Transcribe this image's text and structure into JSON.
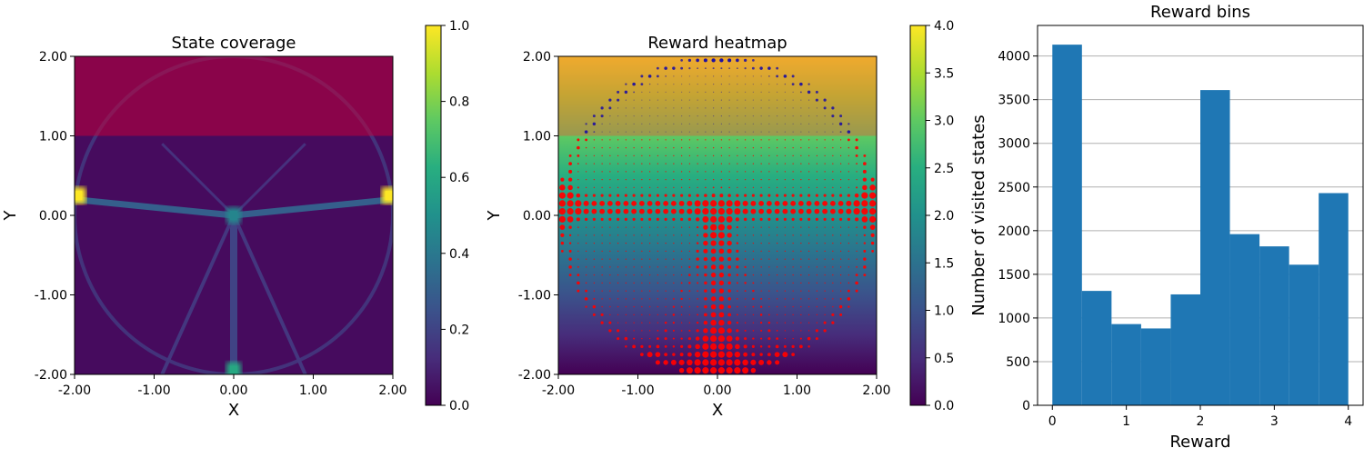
{
  "chart_data": [
    {
      "type": "heatmap",
      "title": "State coverage",
      "xlabel": "X",
      "ylabel": "Y",
      "xlim": [
        -2,
        2
      ],
      "ylim": [
        -2,
        2
      ],
      "xticks": [
        "-2.00",
        "-1.00",
        "0.00",
        "1.00",
        "2.00"
      ],
      "yticks": [
        "-2.00",
        "-1.00",
        "0.00",
        "1.00",
        "2.00"
      ],
      "colorbar": {
        "min": 0,
        "max": 1,
        "ticks": [
          "0.0",
          "0.2",
          "0.4",
          "0.6",
          "0.8",
          "1.0"
        ],
        "colormap": "viridis"
      },
      "overlay_region": {
        "y_from": 1,
        "y_to": 2,
        "color": "#c2003a"
      },
      "hotspots": [
        {
          "x": -1.95,
          "y": 0.25,
          "value": 1.0
        },
        {
          "x": 1.95,
          "y": 0.25,
          "value": 1.0
        },
        {
          "x": 0.0,
          "y": 0.0,
          "value": 0.45
        },
        {
          "x": 0.0,
          "y": -1.95,
          "value": 0.6
        }
      ]
    },
    {
      "type": "scatter",
      "title": "Reward heatmap",
      "xlabel": "X",
      "ylabel": "Y",
      "xlim": [
        -2,
        2
      ],
      "ylim": [
        -2,
        2
      ],
      "xticks": [
        "-2.00",
        "-1.00",
        "0.00",
        "1.00",
        "2.00"
      ],
      "yticks": [
        "-2.00",
        "-1.00",
        "0.00",
        "1.00",
        "2.00"
      ],
      "background_gradient": {
        "axis": "y",
        "from_value": 0,
        "to_value": 4,
        "colormap": "viridis"
      },
      "colorbar": {
        "min": 0,
        "max": 4,
        "ticks": [
          "0.0",
          "0.5",
          "1.0",
          "1.5",
          "2.0",
          "2.5",
          "3.0",
          "3.5",
          "4.0"
        ],
        "colormap": "viridis"
      },
      "overlay_region": {
        "y_from": 1,
        "y_to": 2,
        "color": "#e0603a"
      },
      "marker_colors": {
        "below_y1": "#ff0000",
        "above_y1": "#1f10a0"
      }
    },
    {
      "type": "bar",
      "title": "Reward bins",
      "xlabel": "Reward",
      "ylabel": "Number of visited states",
      "bin_edges": [
        0,
        0.4,
        0.8,
        1.2,
        1.6,
        2.0,
        2.4,
        2.8,
        3.2,
        3.6,
        4.0
      ],
      "values": [
        4130,
        1310,
        930,
        880,
        1270,
        3610,
        1960,
        1820,
        1610,
        2430
      ],
      "xlim": [
        -0.2,
        4.2
      ],
      "ylim": [
        0,
        4350
      ],
      "xticks": [
        "0",
        "1",
        "2",
        "3",
        "4"
      ],
      "yticks": [
        "0",
        "500",
        "1000",
        "1500",
        "2000",
        "2500",
        "3000",
        "3500",
        "4000"
      ],
      "grid": "y",
      "color": "#1f77b4"
    }
  ]
}
